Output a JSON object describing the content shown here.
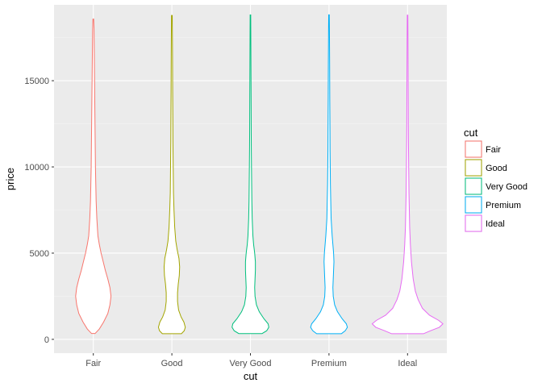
{
  "chart_data": {
    "type": "violin",
    "xlabel": "cut",
    "ylabel": "price",
    "categories": [
      "Fair",
      "Good",
      "Very Good",
      "Premium",
      "Ideal"
    ],
    "ylim": [
      -800,
      19400
    ],
    "y_ticks": [
      0,
      5000,
      10000,
      15000
    ],
    "y_tick_labels": [
      "0",
      "5000",
      "10000",
      "15000"
    ],
    "grid": true,
    "legend": {
      "title": "cut",
      "position": "right"
    },
    "series": [
      {
        "name": "Fair",
        "color": "#F8766D",
        "min": 337,
        "max": 18574,
        "density": [
          [
            337,
            0.05
          ],
          [
            600,
            0.17
          ],
          [
            1000,
            0.29
          ],
          [
            1500,
            0.41
          ],
          [
            2000,
            0.47
          ],
          [
            2500,
            0.5
          ],
          [
            3000,
            0.47
          ],
          [
            3500,
            0.41
          ],
          [
            4000,
            0.34
          ],
          [
            4500,
            0.28
          ],
          [
            5000,
            0.22
          ],
          [
            5500,
            0.17
          ],
          [
            6000,
            0.13
          ],
          [
            7000,
            0.1
          ],
          [
            8000,
            0.08
          ],
          [
            9000,
            0.07
          ],
          [
            10000,
            0.06
          ],
          [
            11000,
            0.055
          ],
          [
            12000,
            0.05
          ],
          [
            13000,
            0.045
          ],
          [
            14000,
            0.04
          ],
          [
            15000,
            0.035
          ],
          [
            16000,
            0.03
          ],
          [
            17000,
            0.025
          ],
          [
            18000,
            0.02
          ],
          [
            18574,
            0.01
          ]
        ]
      },
      {
        "name": "Good",
        "color": "#A3A500",
        "min": 327,
        "max": 18788,
        "density": [
          [
            327,
            0.27
          ],
          [
            500,
            0.35
          ],
          [
            700,
            0.38
          ],
          [
            1000,
            0.34
          ],
          [
            1300,
            0.26
          ],
          [
            1700,
            0.19
          ],
          [
            2200,
            0.16
          ],
          [
            2700,
            0.16
          ],
          [
            3200,
            0.18
          ],
          [
            3700,
            0.21
          ],
          [
            4200,
            0.22
          ],
          [
            4700,
            0.2
          ],
          [
            5200,
            0.15
          ],
          [
            5700,
            0.11
          ],
          [
            6500,
            0.08
          ],
          [
            7500,
            0.06
          ],
          [
            8500,
            0.045
          ],
          [
            9500,
            0.04
          ],
          [
            10500,
            0.035
          ],
          [
            11500,
            0.03
          ],
          [
            12500,
            0.028
          ],
          [
            13500,
            0.025
          ],
          [
            14500,
            0.022
          ],
          [
            15500,
            0.02
          ],
          [
            16500,
            0.018
          ],
          [
            17500,
            0.015
          ],
          [
            18788,
            0.01
          ]
        ]
      },
      {
        "name": "Very Good",
        "color": "#00BF7D",
        "min": 336,
        "max": 18818,
        "density": [
          [
            336,
            0.33
          ],
          [
            500,
            0.46
          ],
          [
            700,
            0.52
          ],
          [
            900,
            0.5
          ],
          [
            1200,
            0.38
          ],
          [
            1600,
            0.25
          ],
          [
            2000,
            0.17
          ],
          [
            2500,
            0.13
          ],
          [
            3000,
            0.12
          ],
          [
            3500,
            0.13
          ],
          [
            4000,
            0.14
          ],
          [
            4500,
            0.14
          ],
          [
            5000,
            0.12
          ],
          [
            5500,
            0.09
          ],
          [
            6000,
            0.07
          ],
          [
            7000,
            0.05
          ],
          [
            8000,
            0.04
          ],
          [
            9000,
            0.035
          ],
          [
            10000,
            0.03
          ],
          [
            11000,
            0.025
          ],
          [
            12000,
            0.022
          ],
          [
            13000,
            0.02
          ],
          [
            14000,
            0.018
          ],
          [
            15000,
            0.016
          ],
          [
            16000,
            0.014
          ],
          [
            17000,
            0.012
          ],
          [
            18818,
            0.008
          ]
        ]
      },
      {
        "name": "Premium",
        "color": "#00B0F6",
        "min": 326,
        "max": 18823,
        "density": [
          [
            326,
            0.35
          ],
          [
            500,
            0.46
          ],
          [
            700,
            0.52
          ],
          [
            900,
            0.49
          ],
          [
            1200,
            0.37
          ],
          [
            1600,
            0.24
          ],
          [
            2000,
            0.16
          ],
          [
            2500,
            0.12
          ],
          [
            3000,
            0.11
          ],
          [
            3500,
            0.12
          ],
          [
            4000,
            0.13
          ],
          [
            4500,
            0.14
          ],
          [
            5000,
            0.13
          ],
          [
            5500,
            0.11
          ],
          [
            6000,
            0.09
          ],
          [
            7000,
            0.06
          ],
          [
            8000,
            0.05
          ],
          [
            9000,
            0.04
          ],
          [
            10000,
            0.035
          ],
          [
            11000,
            0.03
          ],
          [
            12000,
            0.028
          ],
          [
            13000,
            0.025
          ],
          [
            14000,
            0.022
          ],
          [
            15000,
            0.02
          ],
          [
            16000,
            0.018
          ],
          [
            17000,
            0.015
          ],
          [
            18000,
            0.012
          ],
          [
            18823,
            0.008
          ]
        ]
      },
      {
        "name": "Ideal",
        "color": "#E76BF3",
        "min": 326,
        "max": 18806,
        "density": [
          [
            326,
            0.45
          ],
          [
            500,
            0.65
          ],
          [
            700,
            0.9
          ],
          [
            900,
            1.0
          ],
          [
            1100,
            0.88
          ],
          [
            1400,
            0.62
          ],
          [
            1800,
            0.42
          ],
          [
            2300,
            0.3
          ],
          [
            2800,
            0.22
          ],
          [
            3500,
            0.16
          ],
          [
            4500,
            0.11
          ],
          [
            5500,
            0.08
          ],
          [
            6500,
            0.06
          ],
          [
            7500,
            0.05
          ],
          [
            8500,
            0.04
          ],
          [
            9500,
            0.035
          ],
          [
            10500,
            0.03
          ],
          [
            11500,
            0.025
          ],
          [
            12500,
            0.022
          ],
          [
            13500,
            0.02
          ],
          [
            14500,
            0.018
          ],
          [
            15500,
            0.016
          ],
          [
            16500,
            0.014
          ],
          [
            17500,
            0.012
          ],
          [
            18806,
            0.008
          ]
        ]
      }
    ]
  }
}
